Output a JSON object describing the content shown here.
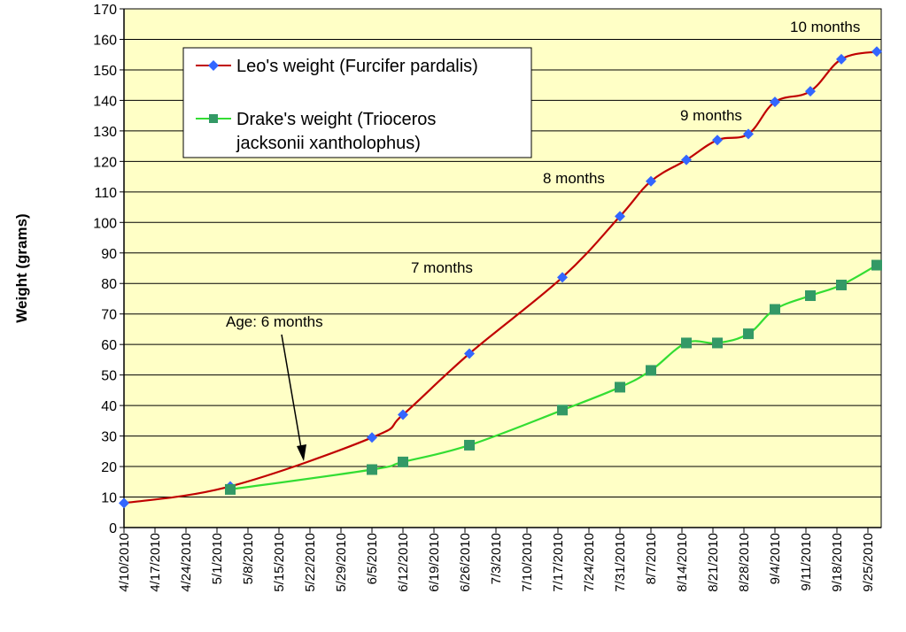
{
  "chart_data": {
    "type": "line",
    "ylabel": "Weight (grams)",
    "ylim": [
      0,
      170
    ],
    "y_ticks": [
      "0",
      "10",
      "20",
      "30",
      "40",
      "50",
      "60",
      "70",
      "80",
      "90",
      "100",
      "110",
      "120",
      "130",
      "140",
      "150",
      "160",
      "170"
    ],
    "x_ticks": [
      "4/10/2010",
      "4/17/2010",
      "4/24/2010",
      "5/1/2010",
      "5/8/2010",
      "5/15/2010",
      "5/22/2010",
      "5/29/2010",
      "6/5/2010",
      "6/12/2010",
      "6/19/2010",
      "6/26/2010",
      "7/3/2010",
      "7/10/2010",
      "7/17/2010",
      "7/24/2010",
      "7/31/2010",
      "8/7/2010",
      "8/14/2010",
      "8/21/2010",
      "8/28/2010",
      "9/4/2010",
      "9/11/2010",
      "9/18/2010",
      "9/25/2010"
    ],
    "xlim": [
      "2010-04-10",
      "2010-09-28"
    ],
    "grid": true,
    "legend_position": "top-left",
    "background_color": "#FFFFC6",
    "series": [
      {
        "name": "Leo's weight (Furcifer pardalis)",
        "color": "#C00000",
        "marker": "diamond",
        "marker_color": "#3366FF",
        "points": [
          [
            "2010-04-10",
            8
          ],
          [
            "2010-05-04",
            13.5
          ],
          [
            "2010-06-05",
            29.5
          ],
          [
            "2010-06-12",
            37
          ],
          [
            "2010-06-27",
            57
          ],
          [
            "2010-07-18",
            82
          ],
          [
            "2010-07-31",
            102
          ],
          [
            "2010-08-07",
            113.5
          ],
          [
            "2010-08-15",
            120.5
          ],
          [
            "2010-08-22",
            127
          ],
          [
            "2010-08-29",
            129
          ],
          [
            "2010-09-04",
            139.5
          ],
          [
            "2010-09-12",
            143
          ],
          [
            "2010-09-19",
            153.5
          ],
          [
            "2010-09-27",
            156
          ]
        ]
      },
      {
        "name": "Drake's weight (Trioceros jacksonii xantholophus)",
        "color": "#33DD33",
        "marker": "square",
        "marker_color": "#339966",
        "points": [
          [
            "2010-05-04",
            12.5
          ],
          [
            "2010-06-05",
            19
          ],
          [
            "2010-06-12",
            21.5
          ],
          [
            "2010-06-27",
            27
          ],
          [
            "2010-07-18",
            38.5
          ],
          [
            "2010-07-31",
            46
          ],
          [
            "2010-08-07",
            51.5
          ],
          [
            "2010-08-15",
            60.5
          ],
          [
            "2010-08-22",
            60.5
          ],
          [
            "2010-08-29",
            63.5
          ],
          [
            "2010-09-04",
            71.5
          ],
          [
            "2010-09-12",
            76
          ],
          [
            "2010-09-19",
            79.5
          ],
          [
            "2010-09-27",
            86
          ]
        ]
      }
    ],
    "legend": {
      "leo_label": "Leo's weight (Furcifer pardalis)",
      "drake_label_line1": "Drake's weight (Trioceros",
      "drake_label_line2": "jacksonii xantholophus)"
    },
    "annotations": {
      "age_6": "Age: 6 months",
      "age_7": "7 months",
      "age_8": "8 months",
      "age_9": "9 months",
      "age_10": "10 months"
    }
  }
}
